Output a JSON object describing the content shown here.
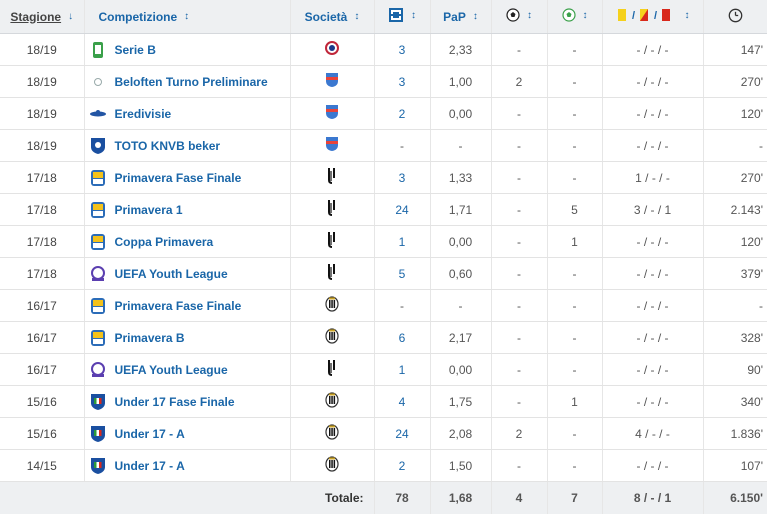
{
  "headers": {
    "season": "Stagione",
    "competition": "Competizione",
    "club": "Società",
    "pap": "PaP",
    "sort_arrow": "↓",
    "sort_toggle": "↕",
    "icons": [
      "apps-icon",
      "goals-icon",
      "assists-icon",
      "cards-icon",
      "clock-icon"
    ]
  },
  "colors": {
    "link": "#1a66a8",
    "header_bg": "#eef0f2",
    "yellow_card": "#f5d11c",
    "red_card": "#d8281c"
  },
  "rows": [
    {
      "season": "18/19",
      "competition": "Serie B",
      "comp_icon": "serie-b-logo",
      "club_icon": "crotone-crest",
      "apps": "3",
      "apps_link": true,
      "pap": "2,33",
      "goals": "-",
      "assists": "-",
      "cards": "- / - / -",
      "minutes": "147'"
    },
    {
      "season": "18/19",
      "competition": "Beloften Turno Preliminare",
      "comp_icon": "dot-logo",
      "club_icon": "zwolle-crest",
      "apps": "3",
      "apps_link": true,
      "pap": "1,00",
      "goals": "2",
      "assists": "-",
      "cards": "- / - / -",
      "minutes": "270'"
    },
    {
      "season": "18/19",
      "competition": "Eredivisie",
      "comp_icon": "eredivisie-logo",
      "club_icon": "zwolle-crest",
      "apps": "2",
      "apps_link": true,
      "pap": "0,00",
      "goals": "-",
      "assists": "-",
      "cards": "- / - / -",
      "minutes": "120'"
    },
    {
      "season": "18/19",
      "competition": "TOTO KNVB beker",
      "comp_icon": "knvb-logo",
      "club_icon": "zwolle-crest",
      "apps": "-",
      "apps_link": false,
      "pap": "-",
      "goals": "-",
      "assists": "-",
      "cards": "- / - / -",
      "minutes": "-"
    },
    {
      "season": "17/18",
      "competition": "Primavera Fase Finale",
      "comp_icon": "primavera-logo",
      "club_icon": "juventus-crest",
      "apps": "3",
      "apps_link": true,
      "pap": "1,33",
      "goals": "-",
      "assists": "-",
      "cards": "1 / - / -",
      "minutes": "270'"
    },
    {
      "season": "17/18",
      "competition": "Primavera 1",
      "comp_icon": "primavera-logo",
      "club_icon": "juventus-crest",
      "apps": "24",
      "apps_link": true,
      "pap": "1,71",
      "goals": "-",
      "assists": "5",
      "cards": "3 / - / 1",
      "minutes": "2.143'"
    },
    {
      "season": "17/18",
      "competition": "Coppa Primavera",
      "comp_icon": "primavera-logo",
      "club_icon": "juventus-crest",
      "apps": "1",
      "apps_link": true,
      "pap": "0,00",
      "goals": "-",
      "assists": "1",
      "cards": "- / - / -",
      "minutes": "120'"
    },
    {
      "season": "17/18",
      "competition": "UEFA Youth League",
      "comp_icon": "uyl-logo",
      "club_icon": "juventus-crest",
      "apps": "5",
      "apps_link": true,
      "pap": "0,60",
      "goals": "-",
      "assists": "-",
      "cards": "- / - / -",
      "minutes": "379'"
    },
    {
      "season": "16/17",
      "competition": "Primavera Fase Finale",
      "comp_icon": "primavera-logo",
      "club_icon": "juventus-old-crest",
      "apps": "-",
      "apps_link": false,
      "pap": "-",
      "goals": "-",
      "assists": "-",
      "cards": "- / - / -",
      "minutes": "-"
    },
    {
      "season": "16/17",
      "competition": "Primavera B",
      "comp_icon": "primavera-logo",
      "club_icon": "juventus-old-crest",
      "apps": "6",
      "apps_link": true,
      "pap": "2,17",
      "goals": "-",
      "assists": "-",
      "cards": "- / - / -",
      "minutes": "328'"
    },
    {
      "season": "16/17",
      "competition": "UEFA Youth League",
      "comp_icon": "uyl-logo",
      "club_icon": "juventus-crest",
      "apps": "1",
      "apps_link": true,
      "pap": "0,00",
      "goals": "-",
      "assists": "-",
      "cards": "- / - / -",
      "minutes": "90'"
    },
    {
      "season": "15/16",
      "competition": "Under 17 Fase Finale",
      "comp_icon": "figc-logo",
      "club_icon": "juventus-old-crest",
      "apps": "4",
      "apps_link": true,
      "pap": "1,75",
      "goals": "-",
      "assists": "1",
      "cards": "- / - / -",
      "minutes": "340'"
    },
    {
      "season": "15/16",
      "competition": "Under 17 - A",
      "comp_icon": "figc-logo",
      "club_icon": "juventus-old-crest",
      "apps": "24",
      "apps_link": true,
      "pap": "2,08",
      "goals": "2",
      "assists": "-",
      "cards": "4 / - / -",
      "minutes": "1.836'"
    },
    {
      "season": "14/15",
      "competition": "Under 17 - A",
      "comp_icon": "figc-logo",
      "club_icon": "juventus-old-crest",
      "apps": "2",
      "apps_link": true,
      "pap": "1,50",
      "goals": "-",
      "assists": "-",
      "cards": "- / - / -",
      "minutes": "107'"
    }
  ],
  "totals": {
    "label": "Totale:",
    "apps": "78",
    "pap": "1,68",
    "goals": "4",
    "assists": "7",
    "cards": "8 / - / 1",
    "minutes": "6.150'"
  }
}
